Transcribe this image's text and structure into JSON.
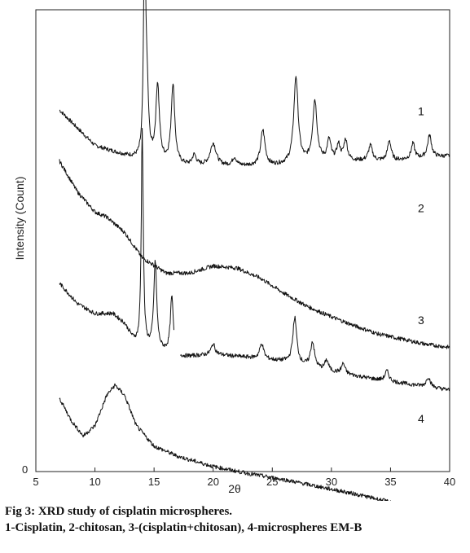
{
  "chart_data": {
    "type": "line",
    "ylabel": "Intensity (Count)",
    "xlabel": "2θ",
    "xlim": [
      5,
      40
    ],
    "xticks": [
      5,
      10,
      15,
      20,
      25,
      30,
      35,
      40
    ],
    "ytick_labels": [
      "0"
    ],
    "grid": false,
    "series": [
      {
        "name": "1",
        "baseline": [
          [
            7,
            3.55
          ],
          [
            10,
            3.2
          ],
          [
            14,
            3.05
          ],
          [
            18,
            3.0
          ],
          [
            25,
            3.0
          ],
          [
            30,
            3.05
          ],
          [
            35,
            3.05
          ],
          [
            40,
            3.1
          ]
        ],
        "peaks": [
          [
            14.2,
            2.3,
            0.1
          ],
          [
            14.4,
            0.6,
            0.15
          ],
          [
            15.3,
            0.75,
            0.18
          ],
          [
            16.6,
            0.78,
            0.18
          ],
          [
            18.4,
            0.1,
            0.2
          ],
          [
            20.0,
            0.22,
            0.3
          ],
          [
            21.8,
            0.08,
            0.2
          ],
          [
            24.2,
            0.35,
            0.22
          ],
          [
            27.0,
            0.85,
            0.22
          ],
          [
            28.6,
            0.6,
            0.22
          ],
          [
            29.8,
            0.2,
            0.18
          ],
          [
            30.6,
            0.15,
            0.18
          ],
          [
            31.2,
            0.2,
            0.18
          ],
          [
            33.3,
            0.15,
            0.2
          ],
          [
            34.9,
            0.2,
            0.18
          ],
          [
            36.9,
            0.15,
            0.18
          ],
          [
            38.3,
            0.22,
            0.2
          ]
        ]
      },
      {
        "name": "2",
        "baseline": [
          [
            7,
            3.05
          ],
          [
            8.5,
            2.75
          ],
          [
            10,
            2.55
          ],
          [
            11,
            2.5
          ],
          [
            12.5,
            2.35
          ],
          [
            14,
            2.1
          ],
          [
            16,
            1.95
          ],
          [
            18,
            1.95
          ],
          [
            20,
            2.02
          ],
          [
            22,
            2.0
          ],
          [
            24,
            1.9
          ],
          [
            26,
            1.75
          ],
          [
            28,
            1.62
          ],
          [
            30,
            1.52
          ],
          [
            32,
            1.43
          ],
          [
            34,
            1.35
          ],
          [
            36,
            1.3
          ],
          [
            38,
            1.25
          ],
          [
            40,
            1.22
          ]
        ],
        "peaks": []
      },
      {
        "name": "3",
        "baseline": [
          [
            7,
            1.85
          ],
          [
            8.5,
            1.65
          ],
          [
            10,
            1.55
          ],
          [
            11.5,
            1.55
          ],
          [
            12.5,
            1.45
          ],
          [
            13.2,
            1.3
          ],
          [
            13.8,
            1.22
          ],
          [
            15,
            1.2
          ],
          [
            16.8,
            1.15
          ],
          [
            17.1,
            1.12
          ],
          [
            20,
            1.15
          ],
          [
            23,
            1.12
          ],
          [
            26,
            1.08
          ],
          [
            30,
            0.98
          ],
          [
            34,
            0.9
          ],
          [
            37,
            0.85
          ],
          [
            40,
            0.8
          ]
        ],
        "peaks": [
          [
            14.0,
            2.15,
            0.1
          ],
          [
            15.1,
            0.85,
            0.15
          ],
          [
            16.5,
            0.55,
            0.15
          ],
          [
            20.0,
            0.1,
            0.2
          ],
          [
            24.1,
            0.15,
            0.2
          ],
          [
            26.9,
            0.45,
            0.2
          ],
          [
            28.4,
            0.25,
            0.2
          ],
          [
            29.6,
            0.1,
            0.18
          ],
          [
            31.0,
            0.1,
            0.18
          ],
          [
            34.7,
            0.1,
            0.2
          ],
          [
            38.2,
            0.1,
            0.2
          ]
        ],
        "gap": [
          16.7,
          17.2
        ]
      },
      {
        "name": "4",
        "baseline": [
          [
            7,
            0.72
          ],
          [
            8,
            0.5
          ],
          [
            9,
            0.35
          ],
          [
            10,
            0.45
          ],
          [
            11,
            0.75
          ],
          [
            11.7,
            0.85
          ],
          [
            12.5,
            0.75
          ],
          [
            13.5,
            0.45
          ],
          [
            15,
            0.25
          ],
          [
            17,
            0.15
          ],
          [
            20,
            0.05
          ],
          [
            23,
            -0.02
          ],
          [
            26,
            -0.08
          ],
          [
            29,
            -0.15
          ],
          [
            32,
            -0.22
          ],
          [
            35,
            -0.3
          ],
          [
            37.5,
            -0.34
          ],
          [
            40,
            -0.38
          ]
        ],
        "peaks": []
      }
    ]
  },
  "caption": {
    "title": "Fig 3: XRD study of cisplatin microspheres.",
    "legend": "1-Cisplatin, 2-chitosan, 3-(cisplatin+chitosan), 4-microspheres EM-B"
  }
}
